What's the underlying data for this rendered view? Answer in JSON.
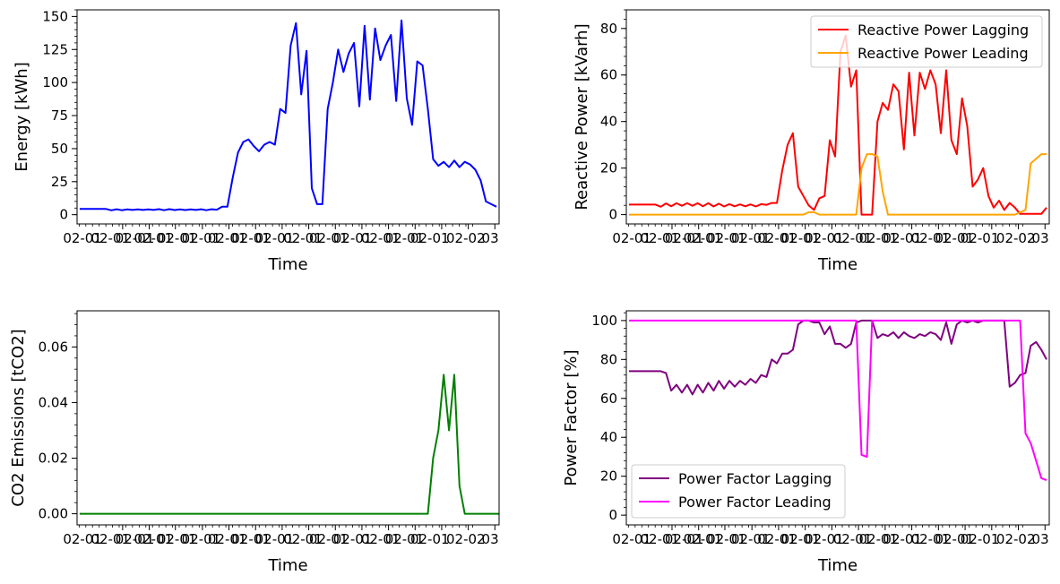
{
  "chart_data": [
    {
      "type": "line",
      "title": "",
      "xlabel": "Time",
      "ylabel": "Energy [kWh]",
      "ylim": [
        -7,
        155
      ],
      "yticks": [
        0,
        25,
        50,
        75,
        100,
        125,
        150
      ],
      "xtick_labels": [
        "02-01",
        "02-01",
        "02-01",
        "02-01",
        "02-01",
        "02-01",
        "02-01",
        "02-01",
        "02-01",
        "02-01",
        "02-01",
        "02-01",
        "02-01",
        "02-01",
        "02-01",
        "02-02",
        "03"
      ],
      "legend": null,
      "x": [
        0,
        0.2,
        0.4,
        0.6,
        0.8,
        1,
        1.2,
        1.4,
        1.6,
        1.8,
        2,
        2.2,
        2.4,
        2.6,
        2.8,
        3,
        3.2,
        3.4,
        3.6,
        3.8,
        4,
        4.2,
        4.4,
        4.6,
        4.8,
        5,
        5.2,
        5.4,
        5.6,
        5.8,
        6,
        6.2,
        6.4,
        6.6,
        6.8,
        7,
        7.2,
        7.4,
        7.6,
        7.8,
        8,
        8.2,
        8.4,
        8.6,
        8.8,
        9,
        9.2,
        9.4,
        9.6,
        9.8,
        10,
        10.2,
        10.4,
        10.6,
        10.8,
        11,
        11.2,
        11.4,
        11.6,
        11.8,
        12,
        12.2,
        12.4,
        12.6,
        12.8,
        13,
        13.2,
        13.4,
        13.6,
        13.8,
        14,
        14.2,
        14.4,
        14.6,
        14.8,
        15,
        15.2,
        15.4,
        15.6,
        15.8
      ],
      "series": [
        {
          "color": "#0000ff",
          "values": [
            4.3,
            4.3,
            4.3,
            4.3,
            4.3,
            4.3,
            3.3,
            4.1,
            3.4,
            4,
            3.6,
            4,
            3.6,
            4,
            3.6,
            4.2,
            3.4,
            4.2,
            3.5,
            4,
            3.5,
            4,
            3.6,
            4.1,
            3.4,
            4.1,
            3.8,
            6,
            6,
            28,
            47,
            55,
            57,
            52,
            48,
            53,
            55,
            53,
            80,
            77,
            128,
            145,
            91,
            124,
            20,
            8,
            8,
            80,
            100,
            125,
            108,
            122,
            130,
            82,
            143,
            87,
            141,
            117,
            128,
            136,
            86,
            147,
            88,
            68,
            116,
            113,
            80,
            42,
            37,
            40,
            36,
            41,
            36,
            40,
            38,
            34,
            26,
            10,
            8,
            6
          ]
        }
      ]
    },
    {
      "type": "line",
      "title": "",
      "xlabel": "Time",
      "ylabel": "Reactive Power [kVarh]",
      "ylim": [
        -4,
        88
      ],
      "yticks": [
        0,
        20,
        40,
        60,
        80
      ],
      "xtick_labels": [
        "02-01",
        "02-01",
        "02-01",
        "02-01",
        "02-01",
        "02-01",
        "02-01",
        "02-01",
        "02-01",
        "02-01",
        "02-01",
        "02-01",
        "02-01",
        "02-01",
        "02-01",
        "02-02",
        "03"
      ],
      "legend": "top-right",
      "x": [
        0,
        0.2,
        0.4,
        0.6,
        0.8,
        1,
        1.2,
        1.4,
        1.6,
        1.8,
        2,
        2.2,
        2.4,
        2.6,
        2.8,
        3,
        3.2,
        3.4,
        3.6,
        3.8,
        4,
        4.2,
        4.4,
        4.6,
        4.8,
        5,
        5.2,
        5.4,
        5.6,
        5.8,
        6,
        6.2,
        6.4,
        6.6,
        6.8,
        7,
        7.2,
        7.4,
        7.6,
        7.8,
        8,
        8.2,
        8.4,
        8.6,
        8.8,
        9,
        9.2,
        9.4,
        9.6,
        9.8,
        10,
        10.2,
        10.4,
        10.6,
        10.8,
        11,
        11.2,
        11.4,
        11.6,
        11.8,
        12,
        12.2,
        12.4,
        12.6,
        12.8,
        13,
        13.2,
        13.4,
        13.6,
        13.8,
        14,
        14.2,
        14.4,
        14.6,
        14.8,
        15,
        15.2,
        15.4,
        15.6,
        15.8
      ],
      "series": [
        {
          "name": "Reactive Power Lagging",
          "color": "#ff0000",
          "values": [
            4.3,
            4.3,
            4.3,
            4.3,
            4.3,
            4.3,
            3.4,
            4.8,
            3.6,
            4.9,
            3.8,
            4.9,
            3.8,
            4.9,
            3.6,
            4.9,
            3.5,
            4.7,
            3.5,
            4.5,
            3.6,
            4.4,
            3.6,
            4.4,
            3.5,
            4.5,
            4.2,
            5,
            5,
            19,
            30,
            35,
            12,
            8,
            4,
            2,
            7,
            8,
            32,
            25,
            70,
            77,
            55,
            62,
            0,
            0,
            0,
            40,
            48,
            45,
            56,
            53,
            28,
            61,
            34,
            61,
            54,
            62,
            56,
            35,
            62,
            32,
            26,
            50,
            38,
            12,
            15,
            20,
            8,
            3,
            6,
            2,
            5,
            3,
            0.3,
            0.3,
            0.3,
            0.3,
            0.3,
            3
          ]
        },
        {
          "name": "Reactive Power Leading",
          "color": "#ffa500",
          "values": [
            0,
            0,
            0,
            0,
            0,
            0,
            0,
            0,
            0,
            0,
            0,
            0,
            0,
            0,
            0,
            0,
            0,
            0,
            0,
            0,
            0,
            0,
            0,
            0,
            0,
            0,
            0,
            0,
            0,
            0,
            0,
            0,
            0,
            0,
            1,
            1,
            0,
            0,
            0,
            0,
            0,
            0,
            0,
            0,
            20,
            26,
            26,
            25,
            10,
            0,
            0,
            0,
            0,
            0,
            0,
            0,
            0,
            0,
            0,
            0,
            0,
            0,
            0,
            0,
            0,
            0,
            0,
            0,
            0,
            0,
            0,
            0,
            0,
            0,
            1,
            2,
            22,
            24,
            26,
            26
          ]
        }
      ]
    },
    {
      "type": "line",
      "title": "",
      "xlabel": "Time",
      "ylabel": "CO2 Emissions [tCO2]",
      "ylim": [
        -0.004,
        0.073
      ],
      "yticks": [
        0.0,
        0.02,
        0.04,
        0.06
      ],
      "ytick_labels": [
        "0.00",
        "0.02",
        "0.04",
        "0.06"
      ],
      "xtick_labels": [
        "02-01",
        "02-01",
        "02-01",
        "02-01",
        "02-01",
        "02-01",
        "02-01",
        "02-01",
        "02-01",
        "02-01",
        "02-01",
        "02-01",
        "02-01",
        "02-01",
        "02-01",
        "02-02",
        "03"
      ],
      "legend": null,
      "x": [
        0,
        13.2,
        13.4,
        13.6,
        13.8,
        14.0,
        14.2,
        14.4,
        14.6,
        14.8,
        15.0,
        15.9
      ],
      "series": [
        {
          "color": "#008000",
          "values": [
            0,
            0,
            0.02,
            0.03,
            0.05,
            0.03,
            0.05,
            0.01,
            0,
            0,
            0,
            0
          ]
        }
      ]
    },
    {
      "type": "line",
      "title": "",
      "xlabel": "Time",
      "ylabel": "Power Factor [%]",
      "ylim": [
        -5,
        105
      ],
      "yticks": [
        0,
        20,
        40,
        60,
        80,
        100
      ],
      "xtick_labels": [
        "02-01",
        "02-01",
        "02-01",
        "02-01",
        "02-01",
        "02-01",
        "02-01",
        "02-01",
        "02-01",
        "02-01",
        "02-01",
        "02-01",
        "02-01",
        "02-01",
        "02-01",
        "02-02",
        "03"
      ],
      "legend": "bottom-left",
      "x": [
        0,
        0.2,
        0.4,
        0.6,
        0.8,
        1,
        1.2,
        1.4,
        1.6,
        1.8,
        2,
        2.2,
        2.4,
        2.6,
        2.8,
        3,
        3.2,
        3.4,
        3.6,
        3.8,
        4,
        4.2,
        4.4,
        4.6,
        4.8,
        5,
        5.2,
        5.4,
        5.6,
        5.8,
        6,
        6.2,
        6.4,
        6.6,
        6.8,
        7,
        7.2,
        7.4,
        7.6,
        7.8,
        8,
        8.2,
        8.4,
        8.6,
        8.8,
        9,
        9.2,
        9.4,
        9.6,
        9.8,
        10,
        10.2,
        10.4,
        10.6,
        10.8,
        11,
        11.2,
        11.4,
        11.6,
        11.8,
        12,
        12.2,
        12.4,
        12.6,
        12.8,
        13,
        13.2,
        13.4,
        13.6,
        13.8,
        14,
        14.2,
        14.4,
        14.6,
        14.8,
        15,
        15.2,
        15.4,
        15.6,
        15.8
      ],
      "series": [
        {
          "name": "Power Factor Lagging",
          "color": "#800080",
          "values": [
            74,
            74,
            74,
            74,
            74,
            74,
            74,
            73,
            64,
            67,
            63,
            67,
            62,
            67,
            63,
            68,
            64,
            69,
            65,
            69,
            66,
            69,
            67,
            70,
            68,
            72,
            71,
            80,
            78,
            83,
            83,
            85,
            98,
            100,
            100,
            99,
            99,
            93,
            97,
            88,
            88,
            86,
            88,
            99,
            100,
            100,
            100,
            91,
            93,
            92,
            94,
            91,
            94,
            92,
            91,
            93,
            92,
            94,
            93,
            90,
            99,
            88,
            98,
            100,
            99,
            100,
            99,
            100,
            100,
            100,
            100,
            100,
            66,
            68,
            72,
            73,
            87,
            89,
            85,
            80
          ]
        },
        {
          "name": "Power Factor Leading",
          "color": "#ff00ff",
          "values": [
            100,
            100,
            100,
            100,
            100,
            100,
            100,
            100,
            100,
            100,
            100,
            100,
            100,
            100,
            100,
            100,
            100,
            100,
            100,
            100,
            100,
            100,
            100,
            100,
            100,
            100,
            100,
            100,
            100,
            100,
            100,
            100,
            100,
            100,
            100,
            100,
            100,
            100,
            100,
            100,
            100,
            100,
            100,
            100,
            31,
            30,
            100,
            100,
            100,
            100,
            100,
            100,
            100,
            100,
            100,
            100,
            100,
            100,
            100,
            100,
            100,
            100,
            100,
            100,
            100,
            100,
            100,
            100,
            100,
            100,
            100,
            100,
            100,
            100,
            100,
            42,
            37,
            28,
            19,
            18
          ]
        }
      ]
    }
  ]
}
